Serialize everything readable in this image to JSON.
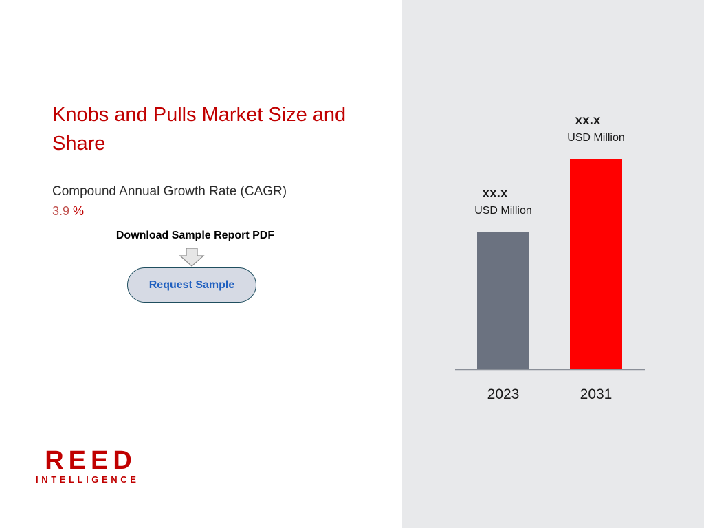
{
  "title": "Knobs and Pulls Market Size and Share",
  "cagr": {
    "label": "Compound Annual Growth Rate (CAGR)",
    "value": "3.9",
    "unit": "%"
  },
  "download": {
    "text": "Download Sample Report PDF",
    "button_label": "Request Sample"
  },
  "logo": {
    "word": "REED",
    "sub": "INTELLIGENCE"
  },
  "colors": {
    "title": "#c00000",
    "bar_2023": "#6b7280",
    "bar_2031": "#ff0000",
    "panel": "#e8e9eb"
  },
  "chart_data": {
    "type": "bar",
    "categories": [
      "2023",
      "2031"
    ],
    "values": [
      100,
      153
    ],
    "value_labels": [
      "xx.x",
      "xx.x"
    ],
    "unit_labels": [
      "USD Million",
      "USD Million"
    ],
    "ylim": [
      0,
      160
    ],
    "grid": false,
    "legend": "none"
  }
}
